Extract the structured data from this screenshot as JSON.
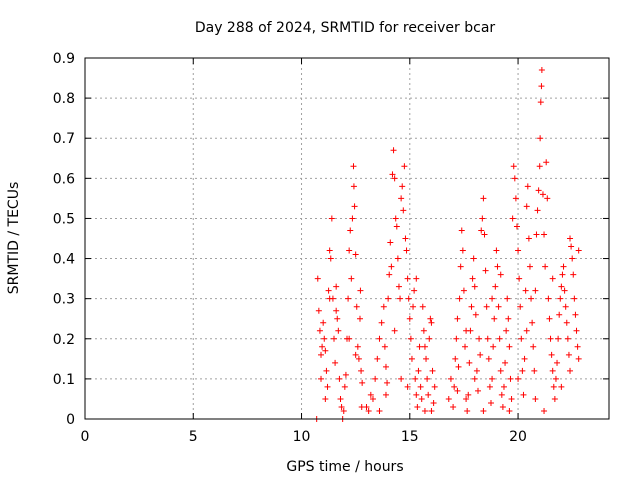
{
  "chart_data": {
    "type": "scatter",
    "title": "Day 288 of 2024, SRMTID for receiver bcar",
    "xlabel": "GPS time / hours",
    "ylabel": "SRMTID / TECUs",
    "xlim": [
      0,
      24.2
    ],
    "ylim": [
      0,
      0.9
    ],
    "x_ticks": [
      0,
      5,
      10,
      15,
      20
    ],
    "x_tick_labels": [
      "0",
      "5",
      "10",
      "15",
      "20"
    ],
    "y_ticks": [
      0,
      0.1,
      0.2,
      0.3,
      0.4,
      0.5,
      0.6,
      0.7,
      0.8,
      0.9
    ],
    "y_tick_labels": [
      "0",
      "0.1",
      "0.2",
      "0.3",
      "0.4",
      "0.5",
      "0.6",
      "0.7",
      "0.8",
      "0.9"
    ],
    "grid": true,
    "marker": "plus",
    "series": [
      {
        "name": "SRMTID",
        "color": "#ff0000",
        "points": [
          [
            10.7,
            0.0
          ],
          [
            10.75,
            0.35
          ],
          [
            10.8,
            0.27
          ],
          [
            10.85,
            0.22
          ],
          [
            10.9,
            0.16
          ],
          [
            10.95,
            0.18
          ],
          [
            11.0,
            0.24
          ],
          [
            11.05,
            0.2
          ],
          [
            11.1,
            0.17
          ],
          [
            11.15,
            0.12
          ],
          [
            11.2,
            0.08
          ],
          [
            11.25,
            0.32
          ],
          [
            11.3,
            0.42
          ],
          [
            11.35,
            0.4
          ],
          [
            11.4,
            0.5
          ],
          [
            11.45,
            0.3
          ],
          [
            11.5,
            0.2
          ],
          [
            11.55,
            0.14
          ],
          [
            11.6,
            0.27
          ],
          [
            11.65,
            0.25
          ],
          [
            11.7,
            0.22
          ],
          [
            11.75,
            0.1
          ],
          [
            11.8,
            0.05
          ],
          [
            11.85,
            0.03
          ],
          [
            11.9,
            0.0
          ],
          [
            11.95,
            0.02
          ],
          [
            12.0,
            0.08
          ],
          [
            12.05,
            0.11
          ],
          [
            12.1,
            0.2
          ],
          [
            12.15,
            0.3
          ],
          [
            12.2,
            0.42
          ],
          [
            12.25,
            0.47
          ],
          [
            12.3,
            0.35
          ],
          [
            12.35,
            0.5
          ],
          [
            12.4,
            0.63
          ],
          [
            12.42,
            0.58
          ],
          [
            12.45,
            0.53
          ],
          [
            12.5,
            0.41
          ],
          [
            12.55,
            0.28
          ],
          [
            12.6,
            0.18
          ],
          [
            12.65,
            0.15
          ],
          [
            12.7,
            0.25
          ],
          [
            12.72,
            0.32
          ],
          [
            12.75,
            0.12
          ],
          [
            12.78,
            0.03
          ],
          [
            12.8,
            0.09
          ],
          [
            13.0,
            0.03
          ],
          [
            13.1,
            0.02
          ],
          [
            13.2,
            0.06
          ],
          [
            13.3,
            0.05
          ],
          [
            13.4,
            0.1
          ],
          [
            13.5,
            0.15
          ],
          [
            13.6,
            0.2
          ],
          [
            13.7,
            0.24
          ],
          [
            13.8,
            0.28
          ],
          [
            13.85,
            0.18
          ],
          [
            13.9,
            0.13
          ],
          [
            13.95,
            0.09
          ],
          [
            14.0,
            0.3
          ],
          [
            14.05,
            0.36
          ],
          [
            14.1,
            0.44
          ],
          [
            14.15,
            0.38
          ],
          [
            14.2,
            0.61
          ],
          [
            14.25,
            0.67
          ],
          [
            14.3,
            0.6
          ],
          [
            14.35,
            0.5
          ],
          [
            14.4,
            0.48
          ],
          [
            14.45,
            0.4
          ],
          [
            14.5,
            0.33
          ],
          [
            14.55,
            0.3
          ],
          [
            14.6,
            0.55
          ],
          [
            14.65,
            0.58
          ],
          [
            14.7,
            0.52
          ],
          [
            14.75,
            0.63
          ],
          [
            14.8,
            0.45
          ],
          [
            14.85,
            0.42
          ],
          [
            14.9,
            0.35
          ],
          [
            14.95,
            0.3
          ],
          [
            15.0,
            0.25
          ],
          [
            15.05,
            0.2
          ],
          [
            15.1,
            0.15
          ],
          [
            15.15,
            0.28
          ],
          [
            15.2,
            0.32
          ],
          [
            15.25,
            0.1
          ],
          [
            15.3,
            0.06
          ],
          [
            15.35,
            0.03
          ],
          [
            15.4,
            0.12
          ],
          [
            15.45,
            0.18
          ],
          [
            15.5,
            0.08
          ],
          [
            15.55,
            0.05
          ],
          [
            15.6,
            0.28
          ],
          [
            15.65,
            0.22
          ],
          [
            15.7,
            0.02
          ],
          [
            15.75,
            0.15
          ],
          [
            15.8,
            0.1
          ],
          [
            15.85,
            0.06
          ],
          [
            15.9,
            0.2
          ],
          [
            15.95,
            0.25
          ],
          [
            16.0,
            0.24
          ],
          [
            16.05,
            0.12
          ],
          [
            16.1,
            0.04
          ],
          [
            16.15,
            0.08
          ],
          [
            16.8,
            0.05
          ],
          [
            16.9,
            0.1
          ],
          [
            17.0,
            0.03
          ],
          [
            17.05,
            0.08
          ],
          [
            17.1,
            0.15
          ],
          [
            17.15,
            0.2
          ],
          [
            17.2,
            0.25
          ],
          [
            17.25,
            0.13
          ],
          [
            17.3,
            0.3
          ],
          [
            17.35,
            0.38
          ],
          [
            17.4,
            0.47
          ],
          [
            17.45,
            0.42
          ],
          [
            17.5,
            0.32
          ],
          [
            17.55,
            0.18
          ],
          [
            17.6,
            0.05
          ],
          [
            17.65,
            0.02
          ],
          [
            17.7,
            0.06
          ],
          [
            17.75,
            0.14
          ],
          [
            17.8,
            0.22
          ],
          [
            17.85,
            0.28
          ],
          [
            17.9,
            0.35
          ],
          [
            17.95,
            0.4
          ],
          [
            18.0,
            0.33
          ],
          [
            18.05,
            0.26
          ],
          [
            18.1,
            0.12
          ],
          [
            18.15,
            0.07
          ],
          [
            18.2,
            0.2
          ],
          [
            18.25,
            0.16
          ],
          [
            18.3,
            0.47
          ],
          [
            18.35,
            0.5
          ],
          [
            18.4,
            0.55
          ],
          [
            18.45,
            0.46
          ],
          [
            18.5,
            0.37
          ],
          [
            18.55,
            0.28
          ],
          [
            18.6,
            0.2
          ],
          [
            18.65,
            0.15
          ],
          [
            18.7,
            0.08
          ],
          [
            18.75,
            0.04
          ],
          [
            18.8,
            0.1
          ],
          [
            18.85,
            0.18
          ],
          [
            18.9,
            0.25
          ],
          [
            18.95,
            0.33
          ],
          [
            19.0,
            0.42
          ],
          [
            19.05,
            0.38
          ],
          [
            19.1,
            0.28
          ],
          [
            19.15,
            0.2
          ],
          [
            19.2,
            0.12
          ],
          [
            19.25,
            0.06
          ],
          [
            19.3,
            0.03
          ],
          [
            19.35,
            0.08
          ],
          [
            19.4,
            0.14
          ],
          [
            19.45,
            0.22
          ],
          [
            19.5,
            0.3
          ],
          [
            19.55,
            0.25
          ],
          [
            19.6,
            0.18
          ],
          [
            19.65,
            0.1
          ],
          [
            19.7,
            0.05
          ],
          [
            19.75,
            0.5
          ],
          [
            19.8,
            0.63
          ],
          [
            19.85,
            0.6
          ],
          [
            19.9,
            0.55
          ],
          [
            19.95,
            0.48
          ],
          [
            20.0,
            0.42
          ],
          [
            20.05,
            0.35
          ],
          [
            20.1,
            0.28
          ],
          [
            20.15,
            0.2
          ],
          [
            20.2,
            0.12
          ],
          [
            20.25,
            0.06
          ],
          [
            20.3,
            0.15
          ],
          [
            20.35,
            0.32
          ],
          [
            20.4,
            0.53
          ],
          [
            20.45,
            0.58
          ],
          [
            20.5,
            0.45
          ],
          [
            20.55,
            0.38
          ],
          [
            20.6,
            0.3
          ],
          [
            20.65,
            0.24
          ],
          [
            20.7,
            0.18
          ],
          [
            20.75,
            0.12
          ],
          [
            20.8,
            0.32
          ],
          [
            20.85,
            0.46
          ],
          [
            20.9,
            0.52
          ],
          [
            20.95,
            0.57
          ],
          [
            21.0,
            0.63
          ],
          [
            21.02,
            0.7
          ],
          [
            21.05,
            0.79
          ],
          [
            21.08,
            0.83
          ],
          [
            21.1,
            0.87
          ],
          [
            21.15,
            0.56
          ],
          [
            21.2,
            0.46
          ],
          [
            21.25,
            0.38
          ],
          [
            21.3,
            0.64
          ],
          [
            21.35,
            0.55
          ],
          [
            21.4,
            0.3
          ],
          [
            21.45,
            0.25
          ],
          [
            21.5,
            0.2
          ],
          [
            21.55,
            0.16
          ],
          [
            21.6,
            0.12
          ],
          [
            21.65,
            0.08
          ],
          [
            21.7,
            0.05
          ],
          [
            21.75,
            0.1
          ],
          [
            21.8,
            0.14
          ],
          [
            21.85,
            0.2
          ],
          [
            21.9,
            0.26
          ],
          [
            21.95,
            0.3
          ],
          [
            22.0,
            0.33
          ],
          [
            22.05,
            0.36
          ],
          [
            22.1,
            0.38
          ],
          [
            22.15,
            0.32
          ],
          [
            22.2,
            0.28
          ],
          [
            22.25,
            0.24
          ],
          [
            22.3,
            0.2
          ],
          [
            22.35,
            0.16
          ],
          [
            22.4,
            0.45
          ],
          [
            22.45,
            0.43
          ],
          [
            22.5,
            0.4
          ],
          [
            22.55,
            0.36
          ],
          [
            22.6,
            0.3
          ],
          [
            22.65,
            0.26
          ],
          [
            22.7,
            0.22
          ],
          [
            22.75,
            0.18
          ],
          [
            22.8,
            0.15
          ],
          [
            10.9,
            0.1
          ],
          [
            11.1,
            0.05
          ],
          [
            11.3,
            0.3
          ],
          [
            11.6,
            0.33
          ],
          [
            12.2,
            0.2
          ],
          [
            12.5,
            0.16
          ],
          [
            13.6,
            0.02
          ],
          [
            13.9,
            0.06
          ],
          [
            14.3,
            0.22
          ],
          [
            14.6,
            0.1
          ],
          [
            14.9,
            0.08
          ],
          [
            15.3,
            0.35
          ],
          [
            15.7,
            0.18
          ],
          [
            16.0,
            0.02
          ],
          [
            17.2,
            0.07
          ],
          [
            17.6,
            0.22
          ],
          [
            18.0,
            0.1
          ],
          [
            18.4,
            0.02
          ],
          [
            18.8,
            0.3
          ],
          [
            19.2,
            0.36
          ],
          [
            19.6,
            0.02
          ],
          [
            20.0,
            0.1
          ],
          [
            20.4,
            0.22
          ],
          [
            20.8,
            0.05
          ],
          [
            21.2,
            0.02
          ],
          [
            21.6,
            0.35
          ],
          [
            22.0,
            0.08
          ],
          [
            22.4,
            0.12
          ],
          [
            22.8,
            0.42
          ]
        ]
      }
    ]
  }
}
